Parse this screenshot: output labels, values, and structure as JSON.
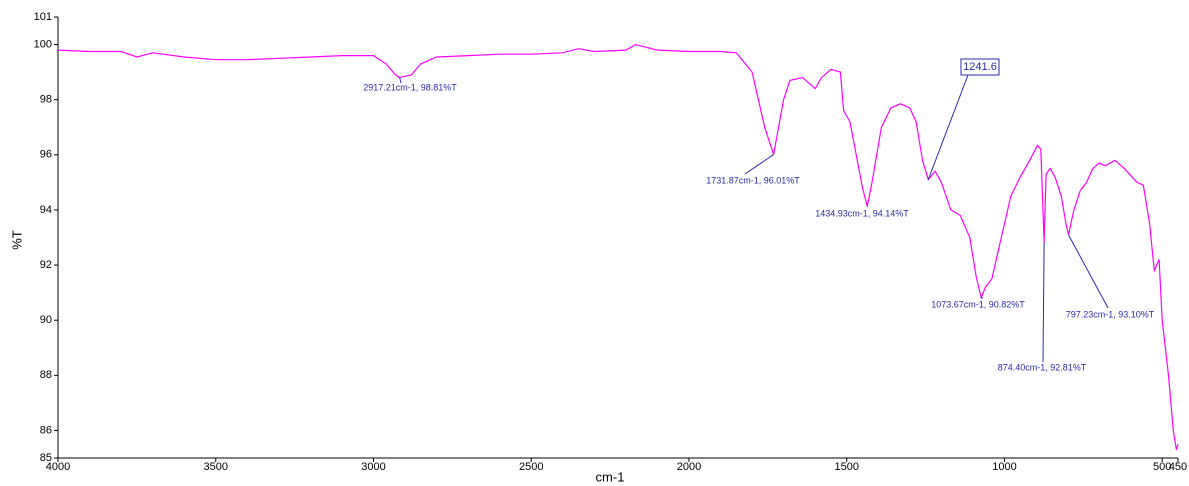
{
  "chart_data": {
    "type": "line",
    "xlabel": "cm-1",
    "ylabel": "%T",
    "color": "#ff00ff",
    "xlim": [
      4000,
      450
    ],
    "ylim": [
      85,
      101
    ],
    "xticks": [
      4000,
      3500,
      3000,
      2500,
      2000,
      1500,
      1000,
      500,
      450
    ],
    "yticks": [
      85,
      86,
      88,
      90,
      92,
      94,
      96,
      98,
      100,
      101
    ],
    "x": [
      4000,
      3900,
      3800,
      3750,
      3700,
      3600,
      3500,
      3400,
      3300,
      3200,
      3100,
      3000,
      2960,
      2930,
      2917.21,
      2880,
      2850,
      2800,
      2700,
      2600,
      2500,
      2400,
      2350,
      2300,
      2200,
      2170,
      2100,
      2000,
      1900,
      1850,
      1800,
      1760,
      1731.87,
      1700,
      1680,
      1640,
      1600,
      1580,
      1550,
      1520,
      1510,
      1490,
      1470,
      1450,
      1434.93,
      1420,
      1390,
      1360,
      1330,
      1300,
      1280,
      1260,
      1241.6,
      1220,
      1200,
      1170,
      1140,
      1110,
      1090,
      1073.67,
      1060,
      1040,
      1010,
      980,
      950,
      920,
      895,
      885,
      878,
      874.4,
      868,
      855,
      840,
      820,
      805,
      797.23,
      780,
      760,
      740,
      720,
      700,
      680,
      650,
      620,
      580,
      560,
      540,
      525,
      510,
      500,
      480,
      465,
      455,
      450
    ],
    "values": [
      99.8,
      99.75,
      99.75,
      99.55,
      99.7,
      99.55,
      99.45,
      99.45,
      99.5,
      99.55,
      99.6,
      99.6,
      99.3,
      98.9,
      98.81,
      98.9,
      99.3,
      99.55,
      99.6,
      99.65,
      99.65,
      99.7,
      99.85,
      99.75,
      99.8,
      100.0,
      99.8,
      99.75,
      99.75,
      99.7,
      99.0,
      97.0,
      96.01,
      98.0,
      98.7,
      98.8,
      98.4,
      98.8,
      99.1,
      99.0,
      97.6,
      97.2,
      96.0,
      94.8,
      94.14,
      95.0,
      97.0,
      97.7,
      97.85,
      97.7,
      97.2,
      95.8,
      95.1,
      95.4,
      95.0,
      94.0,
      93.8,
      93.0,
      91.6,
      90.82,
      91.2,
      91.5,
      93.0,
      94.5,
      95.2,
      95.8,
      96.35,
      96.2,
      94.0,
      92.81,
      95.3,
      95.5,
      95.2,
      94.5,
      93.5,
      93.1,
      94.0,
      94.7,
      95.0,
      95.5,
      95.7,
      95.6,
      95.8,
      95.5,
      95.0,
      94.9,
      93.5,
      91.8,
      92.2,
      90.0,
      88.0,
      86.0,
      85.3,
      85.5
    ],
    "annotations": [
      {
        "text": "2917.21cm-1, 98.81%T",
        "x": 2917.21,
        "y": 98.81
      },
      {
        "text": "1731.87cm-1, 96.01%T",
        "x": 1731.87,
        "y": 96.01
      },
      {
        "text": "1434.93cm-1, 94.14%T",
        "x": 1434.93,
        "y": 94.14
      },
      {
        "text": "1241.6",
        "x": 1241.6,
        "y": 95.1
      },
      {
        "text": "1073.67cm-1, 90.82%T",
        "x": 1073.67,
        "y": 90.82
      },
      {
        "text": "874.40cm-1, 92.81%T",
        "x": 874.4,
        "y": 92.81
      },
      {
        "text": "797.23cm-1, 93.10%T",
        "x": 797.23,
        "y": 93.1
      }
    ]
  }
}
